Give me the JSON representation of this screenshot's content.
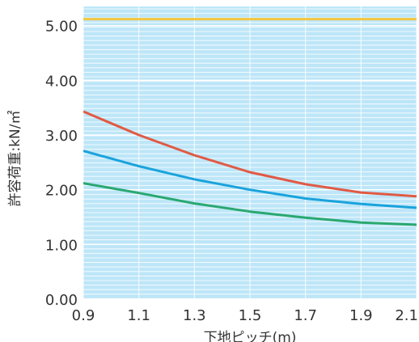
{
  "chart_data": {
    "type": "line",
    "ylabel": "許容荷重:kN/㎡",
    "xlabel": "下地ピッチ(m)",
    "x": [
      0.9,
      1.1,
      1.3,
      1.5,
      1.7,
      1.9,
      2.1
    ],
    "xlim": [
      0.9,
      2.1
    ],
    "ylim": [
      0.0,
      5.35
    ],
    "x_ticks": [
      "0.9",
      "1.1",
      "1.3",
      "1.5",
      "1.7",
      "1.9",
      "2.1"
    ],
    "y_ticks": [
      "0.00",
      "1.00",
      "2.00",
      "3.00",
      "4.00",
      "5.00"
    ],
    "grid": true,
    "background": "#bde6f8",
    "series": [
      {
        "color": "#f2c640",
        "values": [
          5.12,
          5.12,
          5.12,
          5.12,
          5.12,
          5.12,
          5.12
        ]
      },
      {
        "color": "#e05a45",
        "values": [
          3.43,
          3.0,
          2.63,
          2.32,
          2.1,
          1.95,
          1.88
        ]
      },
      {
        "color": "#1aa3dc",
        "values": [
          2.71,
          2.43,
          2.19,
          2.0,
          1.84,
          1.74,
          1.67
        ]
      },
      {
        "color": "#2aa870",
        "values": [
          2.12,
          1.94,
          1.75,
          1.6,
          1.49,
          1.4,
          1.36
        ]
      }
    ]
  }
}
